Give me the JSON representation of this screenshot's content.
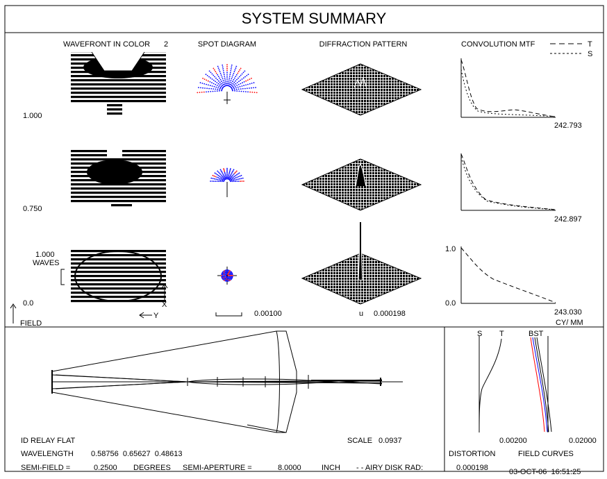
{
  "title": "SYSTEM SUMMARY",
  "columns": {
    "wavefront": "WAVEFRONT IN COLOR",
    "wavefront_num": "2",
    "spot": "SPOT DIAGRAM",
    "diffraction": "DIFFRACTION PATTERN",
    "mtf": "CONVOLUTION MTF"
  },
  "mtf_legend": {
    "t": "T",
    "s": "S"
  },
  "field_labels": [
    "1.000",
    "0.750",
    "0.0"
  ],
  "field_axis_label": "FIELD",
  "wave_scale": {
    "value": "1.000",
    "unit": "WAVES"
  },
  "xy_labels": {
    "x": "X",
    "y": "Y"
  },
  "spot_scale": "0.00100",
  "diff_scale_mark": "u",
  "diff_scale": "0.000198",
  "mtf_freqs": [
    "242.793",
    "242.897",
    "243.030"
  ],
  "mtf_axis": {
    "top": "1.0",
    "bottom": "0.0",
    "unit": "CY/ MM"
  },
  "fieldcurves": {
    "s": "S",
    "t": "T",
    "bst": "BST",
    "distortion_scale": "0.00200",
    "field_scale": "0.02000",
    "distortion_label": "DISTORTION",
    "field_label": "FIELD CURVES"
  },
  "footer": {
    "name": "ID RELAY FLAT",
    "scale_label": "SCALE",
    "scale": "0.0937",
    "wavelength_label": "WAVELENGTH",
    "wavelengths": "0.58756  0.65627  0.48613",
    "semifield_label": "SEMI-FIELD =",
    "semifield": "0.2500",
    "degrees": "DEGREES",
    "semiap_label": "SEMI-APERTURE =",
    "semiap": "8.0000",
    "inch": "INCH",
    "airy_label": "- - AIRY DISK RAD:",
    "airy": "0.000198",
    "date": "03-OCT-06  16:51:25"
  },
  "colors": {
    "spot_primary": "#0000ff",
    "spot_secondary": "#ff0000",
    "airy": "#ff0000",
    "curve_red": "#ff0000",
    "curve_blue": "#0000ff",
    "curve_magenta": "#c000c0"
  }
}
